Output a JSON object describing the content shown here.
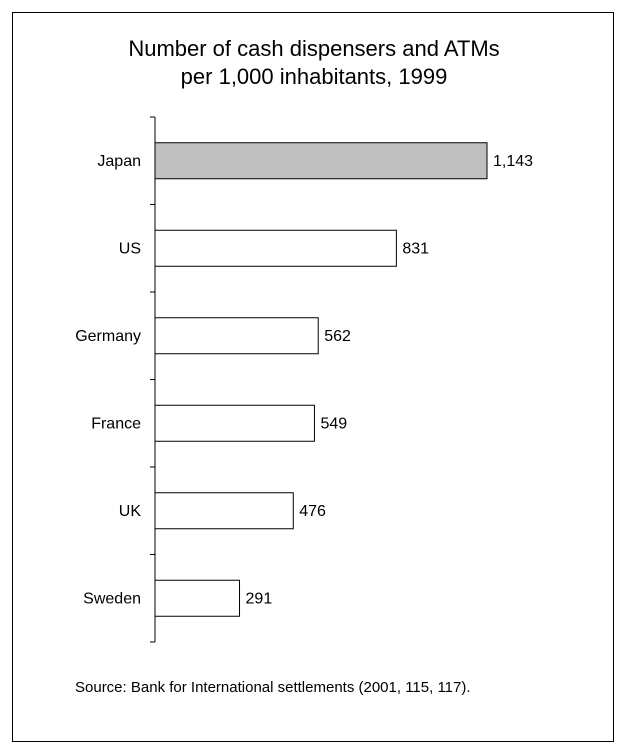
{
  "chart_data": {
    "type": "bar",
    "orientation": "horizontal",
    "title_lines": [
      "Number of cash dispensers and ATMs",
      "per 1,000 inhabitants, 1999"
    ],
    "categories": [
      "Japan",
      "US",
      "Germany",
      "France",
      "UK",
      "Sweden"
    ],
    "values": [
      1143,
      831,
      562,
      549,
      476,
      291
    ],
    "value_labels": [
      "1,143",
      "831",
      "562",
      "549",
      "476",
      "291"
    ],
    "highlight_category": "Japan",
    "colors": {
      "highlight": "#c0c0c0",
      "default": "#ffffff",
      "border": "#000000"
    },
    "xlim": [
      0,
      1250
    ],
    "grid": false,
    "legend": "none"
  },
  "source": {
    "label": "Source:",
    "text": "Bank for International settlements (2001, 115, 117)."
  }
}
